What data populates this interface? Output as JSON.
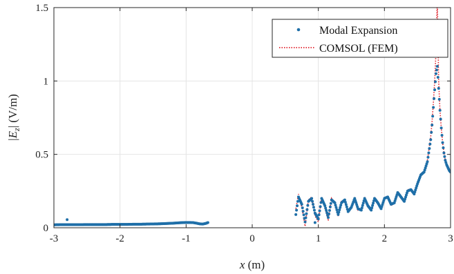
{
  "chart_data": {
    "type": "scatter",
    "title": "",
    "xlabel": {
      "symbol": "x",
      "unit": " (m)"
    },
    "ylabel": {
      "text": "|E_z| (V/m)",
      "open": "|",
      "symbol": "E",
      "subscript": "z",
      "close": "|",
      "unit": " (V/m)"
    },
    "xlim": [
      -3,
      3
    ],
    "ylim": [
      0,
      1.5
    ],
    "xticks": [
      "-3",
      "-2",
      "-1",
      "0",
      "1",
      "2",
      "3"
    ],
    "yticks": [
      "0",
      "0.5",
      "1",
      "1.5"
    ],
    "grid": true,
    "legend_position": "top-right",
    "series": [
      {
        "name": "Modal Expansion",
        "style": "markers",
        "color": "#1f6fa8",
        "segments": [
          {
            "x": [
              -3.0,
              -2.9,
              -2.8,
              -2.7,
              -2.6,
              -2.5,
              -2.4,
              -2.3,
              -2.2,
              -2.1,
              -2.0,
              -1.9,
              -1.8,
              -1.7,
              -1.6,
              -1.5,
              -1.4,
              -1.3,
              -1.2,
              -1.1,
              -1.0,
              -0.95,
              -0.9,
              -0.85,
              -0.8,
              -0.75,
              -0.7,
              -0.67
            ],
            "y": [
              0.02,
              0.021,
              0.021,
              0.021,
              0.021,
              0.022,
              0.022,
              0.022,
              0.022,
              0.023,
              0.023,
              0.023,
              0.024,
              0.024,
              0.025,
              0.026,
              0.027,
              0.029,
              0.031,
              0.034,
              0.036,
              0.036,
              0.035,
              0.032,
              0.027,
              0.025,
              0.03,
              0.035
            ]
          },
          {
            "x": [
              0.66,
              0.7,
              0.75,
              0.8,
              0.85,
              0.9,
              0.95,
              1.0,
              1.05,
              1.1,
              1.15,
              1.2,
              1.25,
              1.3,
              1.35,
              1.4,
              1.45,
              1.5,
              1.55,
              1.6,
              1.65,
              1.7,
              1.75,
              1.8,
              1.85,
              1.9,
              1.95,
              2.0,
              2.05,
              2.1,
              2.15,
              2.2,
              2.25,
              2.3,
              2.35,
              2.4,
              2.45,
              2.5,
              2.55,
              2.6,
              2.65,
              2.7,
              2.72,
              2.74,
              2.76,
              2.78,
              2.8,
              2.82,
              2.84,
              2.86,
              2.88,
              2.9,
              2.92,
              2.94,
              2.96,
              2.98,
              3.0
            ],
            "y": [
              0.09,
              0.21,
              0.16,
              0.04,
              0.18,
              0.2,
              0.1,
              0.06,
              0.2,
              0.15,
              0.07,
              0.19,
              0.17,
              0.09,
              0.17,
              0.19,
              0.11,
              0.14,
              0.2,
              0.13,
              0.12,
              0.2,
              0.15,
              0.12,
              0.2,
              0.17,
              0.13,
              0.2,
              0.21,
              0.16,
              0.17,
              0.24,
              0.21,
              0.18,
              0.25,
              0.26,
              0.23,
              0.3,
              0.36,
              0.38,
              0.45,
              0.6,
              0.7,
              0.82,
              0.94,
              1.05,
              1.1,
              0.95,
              0.8,
              0.68,
              0.58,
              0.51,
              0.46,
              0.43,
              0.41,
              0.39,
              0.38
            ]
          }
        ],
        "outliers": {
          "x": [
            -2.8,
            0.95
          ],
          "y": [
            0.055,
            0.035
          ]
        }
      },
      {
        "name": "COMSOL (FEM)",
        "style": "dotted-line",
        "color": "#e0202a",
        "segments": [
          {
            "x": [
              -3.0,
              -2.5,
              -2.0,
              -1.5,
              -1.3,
              -1.1,
              -1.0,
              -0.95,
              -0.9,
              -0.85,
              -0.8,
              -0.75,
              -0.7,
              -0.67
            ],
            "y": [
              0.02,
              0.022,
              0.023,
              0.026,
              0.029,
              0.034,
              0.036,
              0.036,
              0.035,
              0.032,
              0.027,
              0.025,
              0.03,
              0.035
            ]
          },
          {
            "x": [
              0.66,
              0.7,
              0.75,
              0.8,
              0.85,
              0.9,
              0.95,
              1.0,
              1.05,
              1.1,
              1.15,
              1.2,
              1.25,
              1.3,
              1.35,
              1.4,
              1.45,
              1.5,
              1.55,
              1.6,
              1.65,
              1.7,
              1.75,
              1.8,
              1.85,
              1.9,
              1.95,
              2.0,
              2.05,
              2.1,
              2.15,
              2.2,
              2.25,
              2.3,
              2.35,
              2.4,
              2.45,
              2.5,
              2.55,
              2.6,
              2.65,
              2.7,
              2.72,
              2.74,
              2.76,
              2.78,
              2.79,
              2.8,
              2.81,
              2.82,
              2.84,
              2.86,
              2.88,
              2.9,
              2.92,
              2.94,
              2.96,
              2.98,
              3.0
            ],
            "y": [
              0.13,
              0.23,
              0.14,
              0.01,
              0.19,
              0.21,
              0.08,
              0.04,
              0.21,
              0.14,
              0.05,
              0.2,
              0.16,
              0.08,
              0.18,
              0.18,
              0.1,
              0.15,
              0.2,
              0.12,
              0.13,
              0.21,
              0.14,
              0.12,
              0.21,
              0.16,
              0.13,
              0.21,
              0.21,
              0.15,
              0.17,
              0.25,
              0.2,
              0.18,
              0.26,
              0.26,
              0.23,
              0.31,
              0.37,
              0.38,
              0.46,
              0.62,
              0.72,
              0.85,
              1.0,
              1.2,
              1.4,
              1.55,
              1.3,
              1.0,
              0.8,
              0.68,
              0.58,
              0.51,
              0.46,
              0.43,
              0.41,
              0.39,
              0.38
            ]
          }
        ]
      }
    ]
  }
}
